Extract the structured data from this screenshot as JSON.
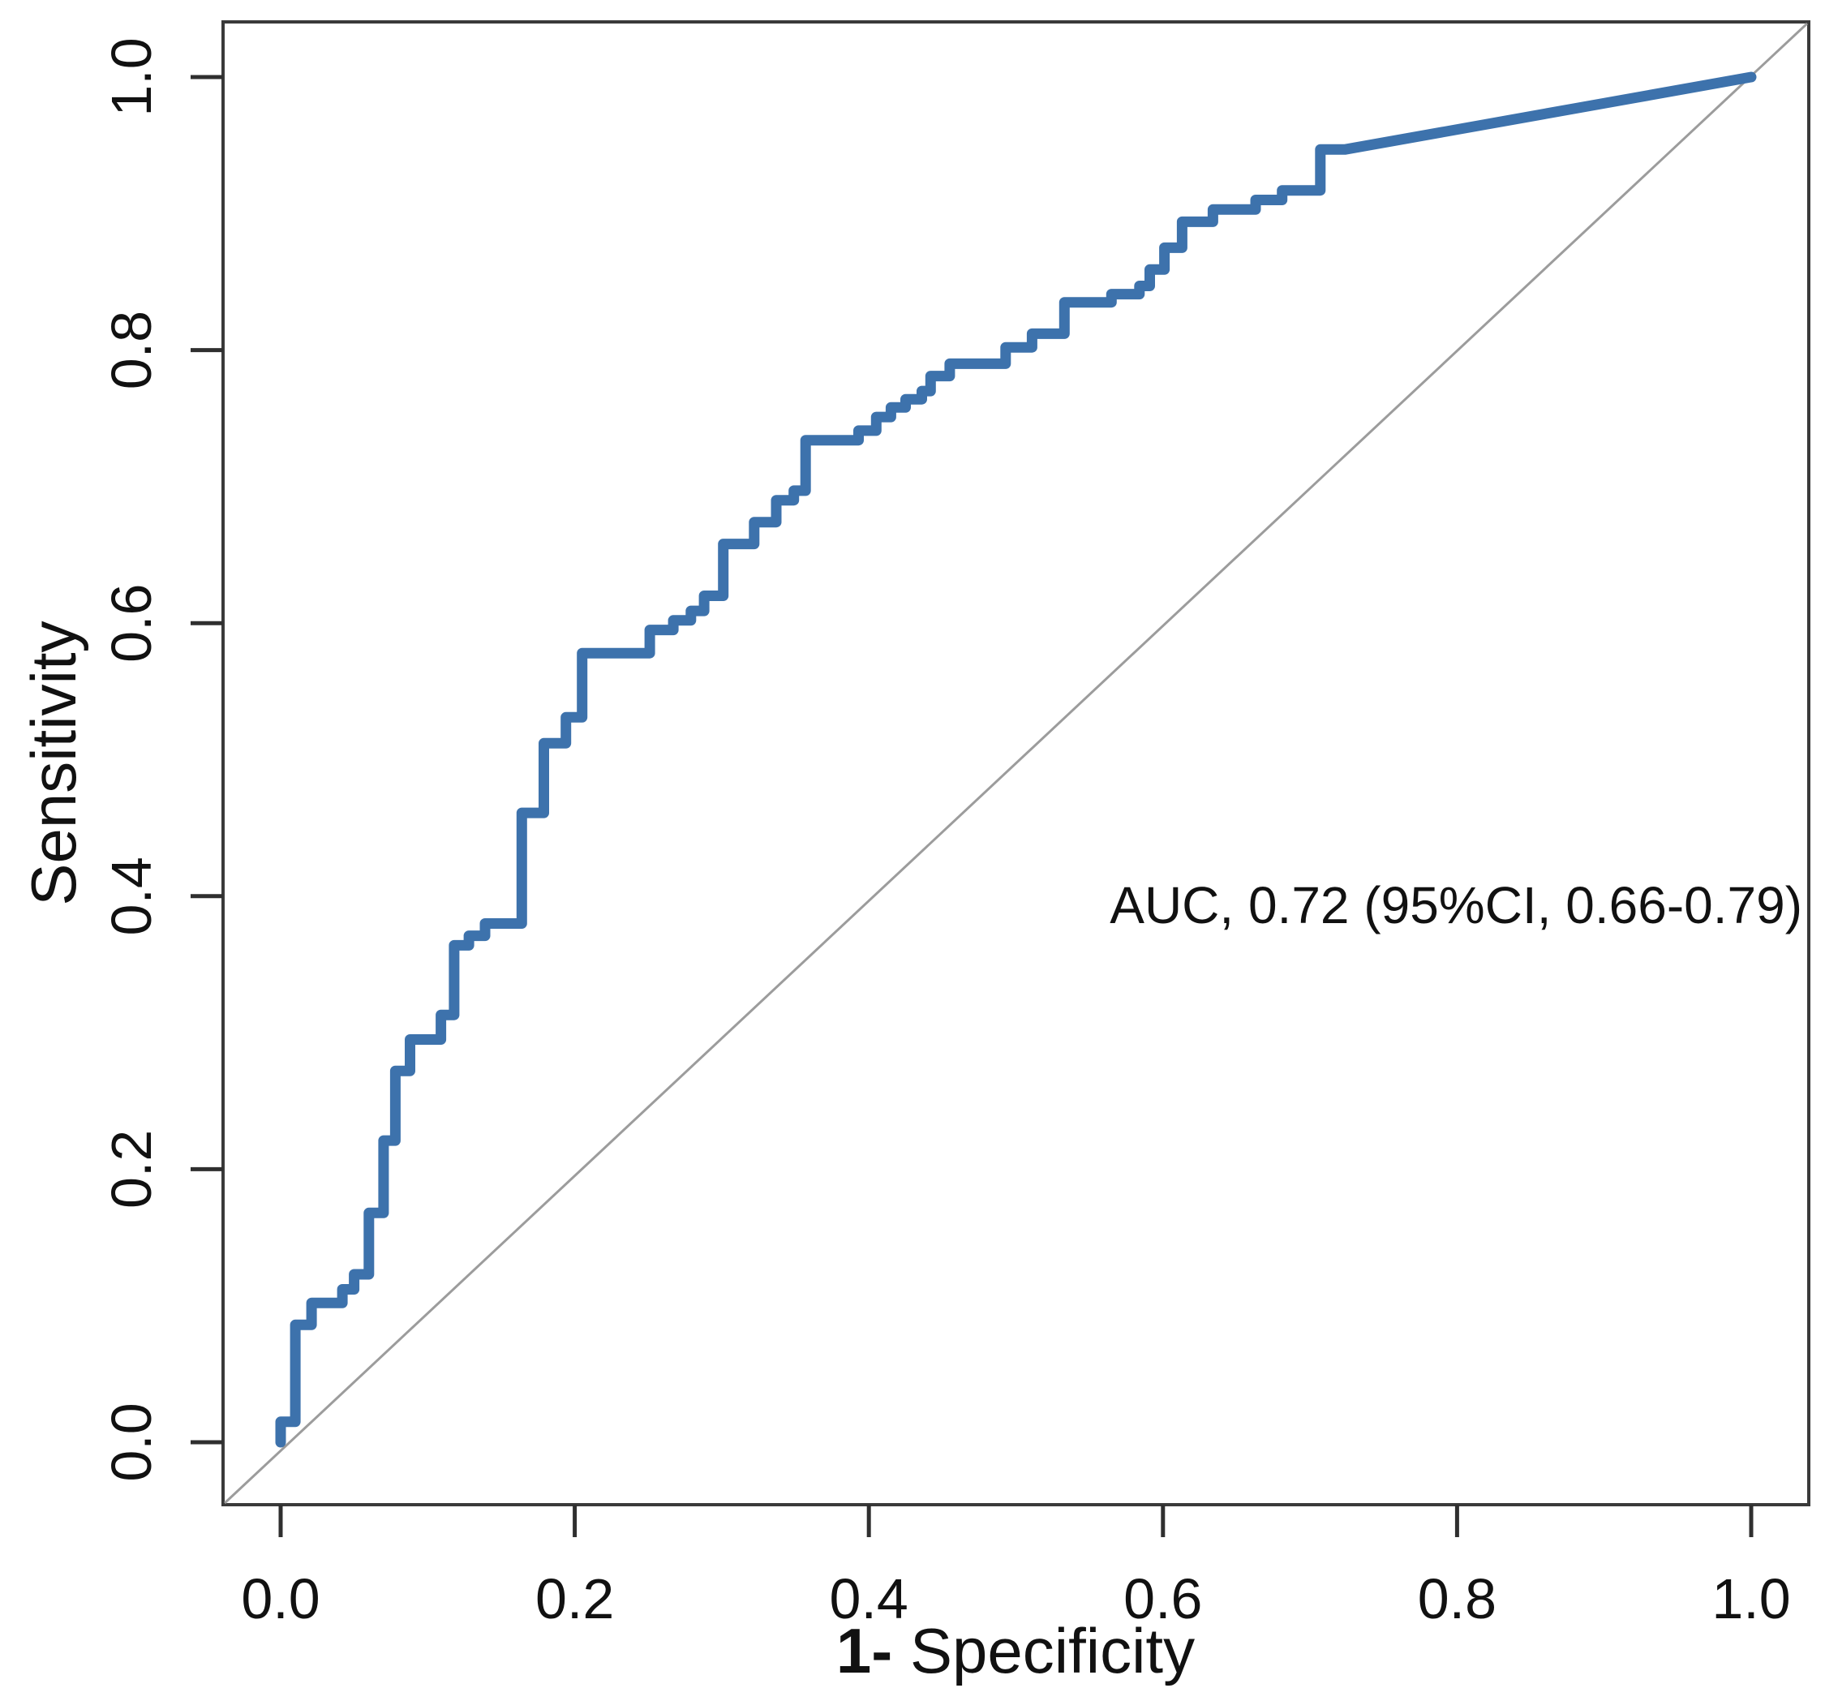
{
  "figure": {
    "background": "#ffffff",
    "plot_border_color": "#3a3a3a",
    "tick_color": "#2f2f2f",
    "text_color": "#111111"
  },
  "chart_data": {
    "type": "line",
    "subtype": "roc-step-curve",
    "title": "",
    "xlabel": "1- Specificity",
    "xlabel_bold": "1-",
    "xlabel_rest": " Specificity",
    "ylabel": "Sensitivity",
    "annotation": "AUC, 0.72 (95%CI, 0.66-0.79)",
    "auc": 0.72,
    "ci_95": [
      0.66,
      0.79
    ],
    "grid": "off",
    "legend": "none",
    "x_axis": {
      "range": [
        0.0,
        1.0
      ],
      "ticks": [
        0.0,
        0.2,
        0.4,
        0.6,
        0.8,
        1.0
      ],
      "tick_labels": [
        "0.0",
        "0.2",
        "0.4",
        "0.6",
        "0.8",
        "1.0"
      ]
    },
    "y_axis": {
      "range": [
        0.0,
        1.0
      ],
      "ticks": [
        0.0,
        0.2,
        0.4,
        0.6,
        0.8,
        1.0
      ],
      "tick_labels": [
        "0.0",
        "0.2",
        "0.4",
        "0.6",
        "0.8",
        "1.0"
      ]
    },
    "reference_line": {
      "from": [
        0.0,
        0.0
      ],
      "to": [
        1.0,
        1.0
      ],
      "color": "#9c9c9c"
    },
    "series": [
      {
        "name": "roc_curve",
        "color": "#3d72ac",
        "stroke_width": 13,
        "points": [
          [
            0.0,
            0.0
          ],
          [
            0.0,
            0.015
          ],
          [
            0.01,
            0.015
          ],
          [
            0.01,
            0.086
          ],
          [
            0.021,
            0.086
          ],
          [
            0.021,
            0.102
          ],
          [
            0.042,
            0.102
          ],
          [
            0.042,
            0.112
          ],
          [
            0.05,
            0.112
          ],
          [
            0.05,
            0.123
          ],
          [
            0.06,
            0.123
          ],
          [
            0.06,
            0.168
          ],
          [
            0.07,
            0.168
          ],
          [
            0.07,
            0.221
          ],
          [
            0.078,
            0.221
          ],
          [
            0.078,
            0.272
          ],
          [
            0.088,
            0.272
          ],
          [
            0.088,
            0.295
          ],
          [
            0.109,
            0.295
          ],
          [
            0.109,
            0.313
          ],
          [
            0.118,
            0.313
          ],
          [
            0.118,
            0.364
          ],
          [
            0.128,
            0.364
          ],
          [
            0.128,
            0.371
          ],
          [
            0.139,
            0.371
          ],
          [
            0.139,
            0.38
          ],
          [
            0.164,
            0.38
          ],
          [
            0.164,
            0.461
          ],
          [
            0.179,
            0.461
          ],
          [
            0.179,
            0.512
          ],
          [
            0.194,
            0.512
          ],
          [
            0.194,
            0.531
          ],
          [
            0.205,
            0.531
          ],
          [
            0.205,
            0.578
          ],
          [
            0.251,
            0.578
          ],
          [
            0.251,
            0.595
          ],
          [
            0.267,
            0.595
          ],
          [
            0.267,
            0.602
          ],
          [
            0.279,
            0.602
          ],
          [
            0.279,
            0.609
          ],
          [
            0.288,
            0.609
          ],
          [
            0.288,
            0.62
          ],
          [
            0.301,
            0.62
          ],
          [
            0.301,
            0.658
          ],
          [
            0.322,
            0.658
          ],
          [
            0.322,
            0.674
          ],
          [
            0.337,
            0.674
          ],
          [
            0.337,
            0.69
          ],
          [
            0.349,
            0.69
          ],
          [
            0.349,
            0.697
          ],
          [
            0.357,
            0.697
          ],
          [
            0.357,
            0.734
          ],
          [
            0.393,
            0.734
          ],
          [
            0.393,
            0.741
          ],
          [
            0.405,
            0.741
          ],
          [
            0.405,
            0.751
          ],
          [
            0.415,
            0.751
          ],
          [
            0.415,
            0.758
          ],
          [
            0.425,
            0.758
          ],
          [
            0.425,
            0.764
          ],
          [
            0.436,
            0.764
          ],
          [
            0.436,
            0.77
          ],
          [
            0.442,
            0.77
          ],
          [
            0.442,
            0.781
          ],
          [
            0.455,
            0.781
          ],
          [
            0.455,
            0.79
          ],
          [
            0.493,
            0.79
          ],
          [
            0.493,
            0.802
          ],
          [
            0.511,
            0.802
          ],
          [
            0.511,
            0.812
          ],
          [
            0.533,
            0.812
          ],
          [
            0.533,
            0.835
          ],
          [
            0.565,
            0.835
          ],
          [
            0.565,
            0.841
          ],
          [
            0.584,
            0.841
          ],
          [
            0.584,
            0.847
          ],
          [
            0.591,
            0.847
          ],
          [
            0.591,
            0.859
          ],
          [
            0.601,
            0.859
          ],
          [
            0.601,
            0.875
          ],
          [
            0.613,
            0.875
          ],
          [
            0.613,
            0.894
          ],
          [
            0.634,
            0.894
          ],
          [
            0.634,
            0.903
          ],
          [
            0.663,
            0.903
          ],
          [
            0.663,
            0.91
          ],
          [
            0.681,
            0.91
          ],
          [
            0.681,
            0.917
          ],
          [
            0.707,
            0.917
          ],
          [
            0.707,
            0.947
          ],
          [
            0.724,
            0.947
          ],
          [
            1.0,
            1.0
          ]
        ]
      }
    ]
  }
}
